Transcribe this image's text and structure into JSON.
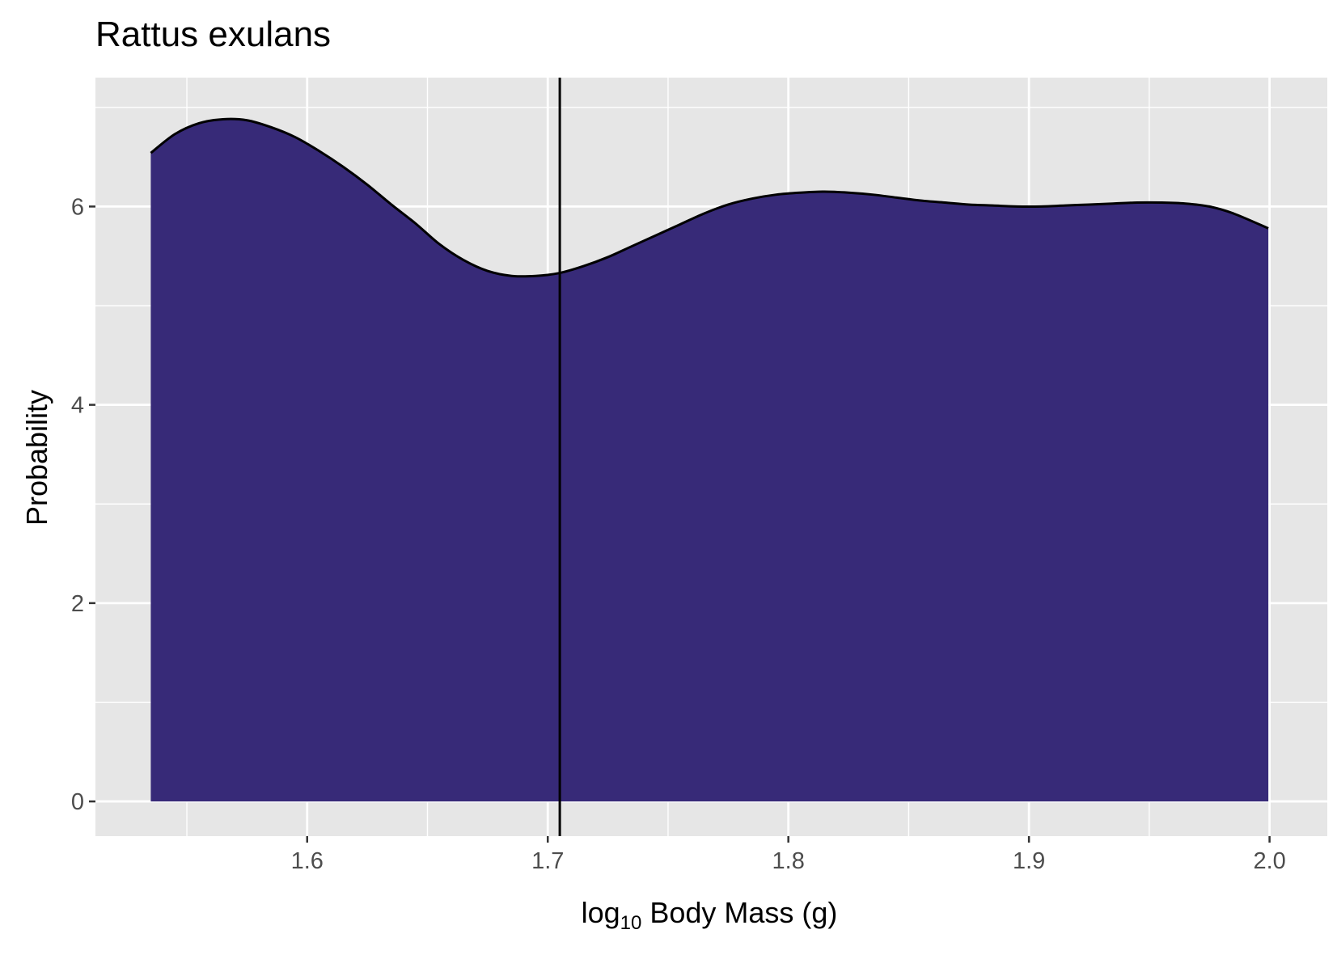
{
  "chart_data": {
    "type": "area",
    "title": "Rattus exulans",
    "xlabel": "Body Mass (g)",
    "xlabel_prefix": "log",
    "xlabel_subscript": "10",
    "ylabel": "Probability",
    "xlim": [
      1.512,
      2.024
    ],
    "ylim": [
      -0.35,
      7.3
    ],
    "x_ticks": [
      1.6,
      1.7,
      1.8,
      1.9,
      2.0
    ],
    "x_tick_labels": [
      "1.6",
      "1.7",
      "1.8",
      "1.9",
      "2.0"
    ],
    "y_ticks": [
      0,
      2,
      4,
      6
    ],
    "y_tick_labels": [
      "0",
      "2",
      "4",
      "6"
    ],
    "grid": true,
    "legend": "none",
    "fill_color": "#372a78",
    "line_color": "#000000",
    "panel_color": "#e6e6e6",
    "vline_x": 1.705,
    "series": [
      {
        "x": [
          1.535,
          1.545,
          1.555,
          1.565,
          1.575,
          1.585,
          1.595,
          1.605,
          1.615,
          1.625,
          1.635,
          1.645,
          1.655,
          1.665,
          1.675,
          1.685,
          1.695,
          1.705,
          1.715,
          1.725,
          1.735,
          1.745,
          1.755,
          1.765,
          1.775,
          1.785,
          1.795,
          1.805,
          1.815,
          1.825,
          1.835,
          1.845,
          1.855,
          1.865,
          1.875,
          1.885,
          1.895,
          1.905,
          1.915,
          1.925,
          1.935,
          1.945,
          1.955,
          1.965,
          1.975,
          1.985,
          1.9995
        ],
        "values": [
          6.54,
          6.73,
          6.84,
          6.88,
          6.87,
          6.8,
          6.7,
          6.56,
          6.4,
          6.22,
          6.02,
          5.83,
          5.62,
          5.46,
          5.35,
          5.3,
          5.3,
          5.33,
          5.4,
          5.49,
          5.6,
          5.71,
          5.82,
          5.93,
          6.02,
          6.08,
          6.12,
          6.14,
          6.15,
          6.14,
          6.12,
          6.09,
          6.06,
          6.04,
          6.02,
          6.01,
          6.0,
          6.0,
          6.01,
          6.02,
          6.03,
          6.04,
          6.04,
          6.03,
          6.0,
          5.93,
          5.78
        ]
      }
    ]
  }
}
